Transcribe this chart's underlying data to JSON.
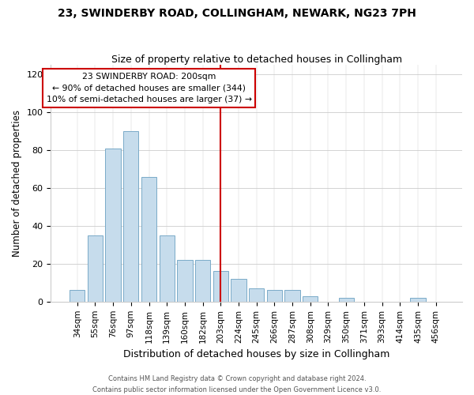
{
  "title1": "23, SWINDERBY ROAD, COLLINGHAM, NEWARK, NG23 7PH",
  "title2": "Size of property relative to detached houses in Collingham",
  "xlabel": "Distribution of detached houses by size in Collingham",
  "ylabel": "Number of detached properties",
  "bar_labels": [
    "34sqm",
    "55sqm",
    "76sqm",
    "97sqm",
    "118sqm",
    "139sqm",
    "160sqm",
    "182sqm",
    "203sqm",
    "224sqm",
    "245sqm",
    "266sqm",
    "287sqm",
    "308sqm",
    "329sqm",
    "350sqm",
    "371sqm",
    "393sqm",
    "414sqm",
    "435sqm",
    "456sqm"
  ],
  "bar_values": [
    6,
    35,
    81,
    90,
    66,
    35,
    22,
    22,
    16,
    12,
    7,
    6,
    6,
    3,
    0,
    2,
    0,
    0,
    0,
    2,
    0
  ],
  "bar_color": "#c6dcec",
  "bar_edge_color": "#7aaac8",
  "vline_x_index": 8,
  "vline_color": "#cc0000",
  "annotation_title": "23 SWINDERBY ROAD: 200sqm",
  "annotation_line1": "← 90% of detached houses are smaller (344)",
  "annotation_line2": "10% of semi-detached houses are larger (37) →",
  "annotation_box_color": "#ffffff",
  "annotation_box_edge": "#cc0000",
  "ylim": [
    0,
    125
  ],
  "yticks": [
    0,
    20,
    40,
    60,
    80,
    100,
    120
  ],
  "bg_color": "#ffffff",
  "grid_color": "#cccccc",
  "footer1": "Contains HM Land Registry data © Crown copyright and database right 2024.",
  "footer2": "Contains public sector information licensed under the Open Government Licence v3.0."
}
